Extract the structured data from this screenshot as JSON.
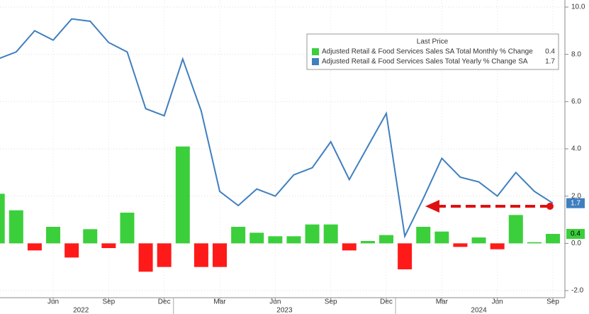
{
  "chart_data": {
    "type": "bar",
    "legend_title": "Last Price",
    "legend": "upper right",
    "grid": true,
    "categories": [
      null,
      null,
      null,
      "Jun",
      null,
      null,
      "Sep",
      null,
      null,
      "Dec",
      null,
      null,
      "Mar",
      null,
      null,
      "Jun",
      null,
      null,
      "Sep",
      null,
      null,
      "Dec",
      null,
      null,
      "Mar",
      null,
      null,
      "Jun",
      null,
      null,
      "Sep"
    ],
    "years": [
      "2022",
      "2023",
      "2024"
    ],
    "series": [
      {
        "name": "Adjusted Retail & Food Services Sales SA Total Monthly % Change",
        "type": "bar",
        "color": "#3ccf3c",
        "negative_color": "#ff1a1a",
        "values": [
          2.1,
          1.4,
          -0.3,
          0.7,
          -0.6,
          0.6,
          -0.2,
          1.3,
          -1.2,
          -1.0,
          4.1,
          -1.0,
          -1.0,
          0.7,
          0.45,
          0.3,
          0.3,
          0.8,
          0.8,
          -0.3,
          0.1,
          0.35,
          -1.1,
          0.7,
          0.5,
          -0.15,
          0.25,
          -0.25,
          1.2,
          0.05,
          0.4
        ]
      },
      {
        "name": "Adjusted Retail & Food Services Sales Total Yearly % Change SA",
        "type": "line",
        "color": "#3f7fbf",
        "values": [
          7.8,
          8.1,
          9.0,
          8.6,
          9.5,
          9.4,
          8.5,
          8.1,
          5.7,
          5.4,
          7.8,
          5.6,
          2.2,
          1.6,
          2.3,
          2.0,
          2.9,
          3.2,
          4.3,
          2.7,
          4.1,
          5.5,
          0.3,
          1.9,
          3.6,
          2.8,
          2.6,
          2.0,
          3.0,
          2.2,
          1.7
        ]
      }
    ],
    "ylim": [
      -2.3,
      10.3
    ],
    "yticks": [
      {
        "value": -2,
        "label": "-2.0"
      },
      {
        "value": 0,
        "label": "0.0"
      },
      {
        "value": 2,
        "label": "2.0"
      },
      {
        "value": 4,
        "label": "4.0"
      },
      {
        "value": 6,
        "label": "6.0"
      },
      {
        "value": 8,
        "label": "8.0"
      },
      {
        "value": 10,
        "label": "10.0"
      }
    ]
  }
}
